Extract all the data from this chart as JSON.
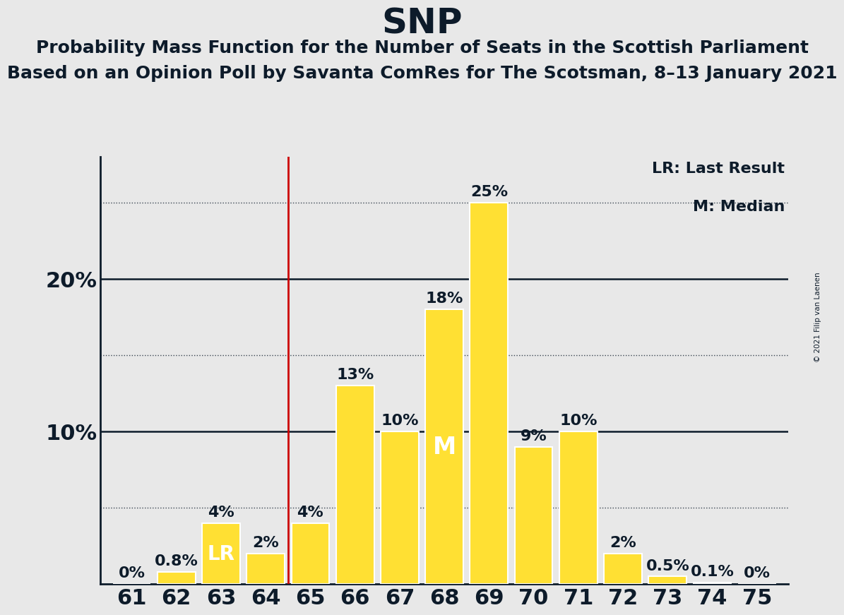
{
  "title": "SNP",
  "subtitle1": "Probability Mass Function for the Number of Seats in the Scottish Parliament",
  "subtitle2": "Based on an Opinion Poll by Savanta ComRes for The Scotsman, 8–13 January 2021",
  "copyright": "© 2021 Filip van Laenen",
  "legend_lr": "LR: Last Result",
  "legend_m": "M: Median",
  "seats": [
    61,
    62,
    63,
    64,
    65,
    66,
    67,
    68,
    69,
    70,
    71,
    72,
    73,
    74,
    75
  ],
  "probabilities": [
    0.0,
    0.8,
    4.0,
    2.0,
    4.0,
    13.0,
    10.0,
    18.0,
    25.0,
    9.0,
    10.0,
    2.0,
    0.5,
    0.1,
    0.0
  ],
  "bar_color": "#FFE033",
  "bar_edge_color": "#FFFFFF",
  "last_result_x": 64.5,
  "last_result_label_seat": 63,
  "median_label_seat": 68,
  "lr_line_color": "#CC0000",
  "background_color": "#E8E8E8",
  "text_color": "#0D1B2A",
  "yticks": [
    10,
    20
  ],
  "ytick_labels": [
    "10%",
    "20%"
  ],
  "dotted_lines": [
    5,
    15,
    25
  ],
  "solid_lines": [
    10,
    20
  ],
  "ylim_max": 28,
  "xlim_min": 60.3,
  "xlim_max": 75.7,
  "ylabel_fontsize": 22,
  "xlabel_fontsize": 22,
  "title_fontsize": 36,
  "subtitle_fontsize": 18,
  "bar_label_fontsize": 16,
  "special_label_fontsize": 20,
  "legend_fontsize": 16
}
